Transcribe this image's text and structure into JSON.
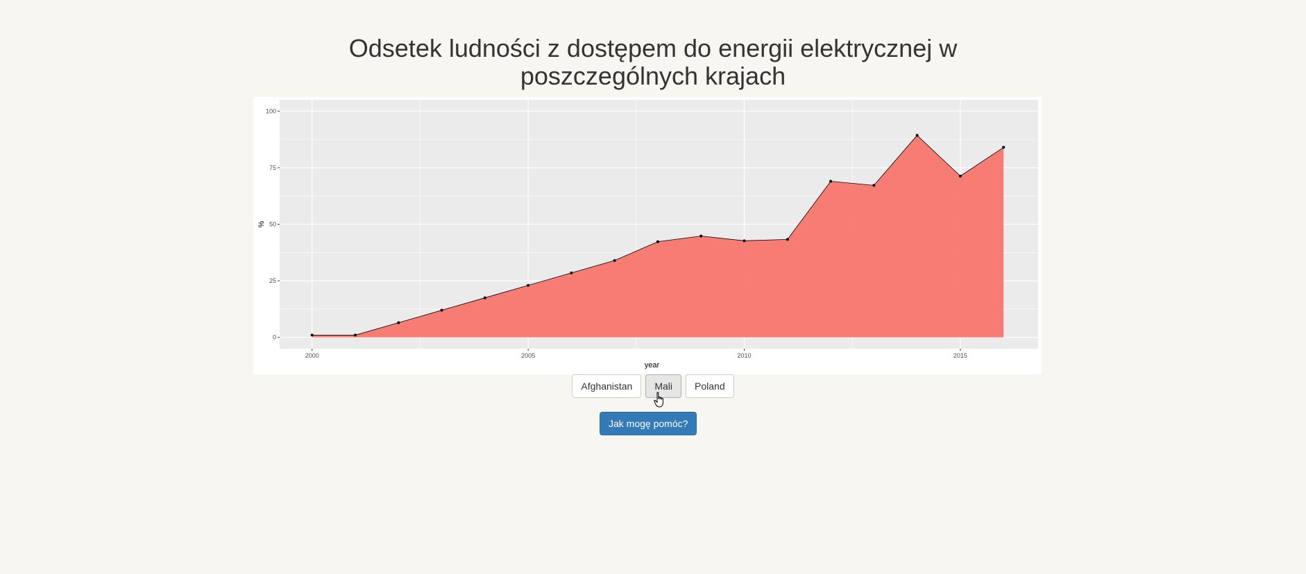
{
  "page": {
    "title": "Odsetek ludności z dostępem do energii elektrycznej w poszczególnych krajach"
  },
  "controls": {
    "countries": [
      "Afghanistan",
      "Mali",
      "Poland"
    ],
    "selected_country": "Mali",
    "help_button_label": "Jak mogę pomóc?"
  },
  "colors": {
    "area_fill": "#f8766d",
    "panel_bg": "#ebebeb",
    "grid": "#ffffff",
    "help_button": "#337ab7"
  },
  "chart_data": {
    "type": "area",
    "title": "",
    "xlabel": "year",
    "ylabel": "%",
    "xlim": [
      2000,
      2016
    ],
    "ylim": [
      0,
      100
    ],
    "x_ticks": [
      2000,
      2005,
      2010,
      2015
    ],
    "y_ticks": [
      0,
      25,
      50,
      75,
      100
    ],
    "grid": true,
    "legend": "none",
    "series": [
      {
        "x": [
          2000,
          2001,
          2002,
          2003,
          2004,
          2005,
          2006,
          2007,
          2008,
          2009,
          2010,
          2011,
          2012,
          2013,
          2014,
          2015,
          2016
        ],
        "values": [
          1.0,
          1.0,
          6.5,
          12.0,
          17.5,
          23.0,
          28.5,
          34.0,
          42.3,
          44.8,
          42.7,
          43.3,
          69.0,
          67.2,
          89.3,
          71.3,
          84.0
        ]
      }
    ]
  }
}
